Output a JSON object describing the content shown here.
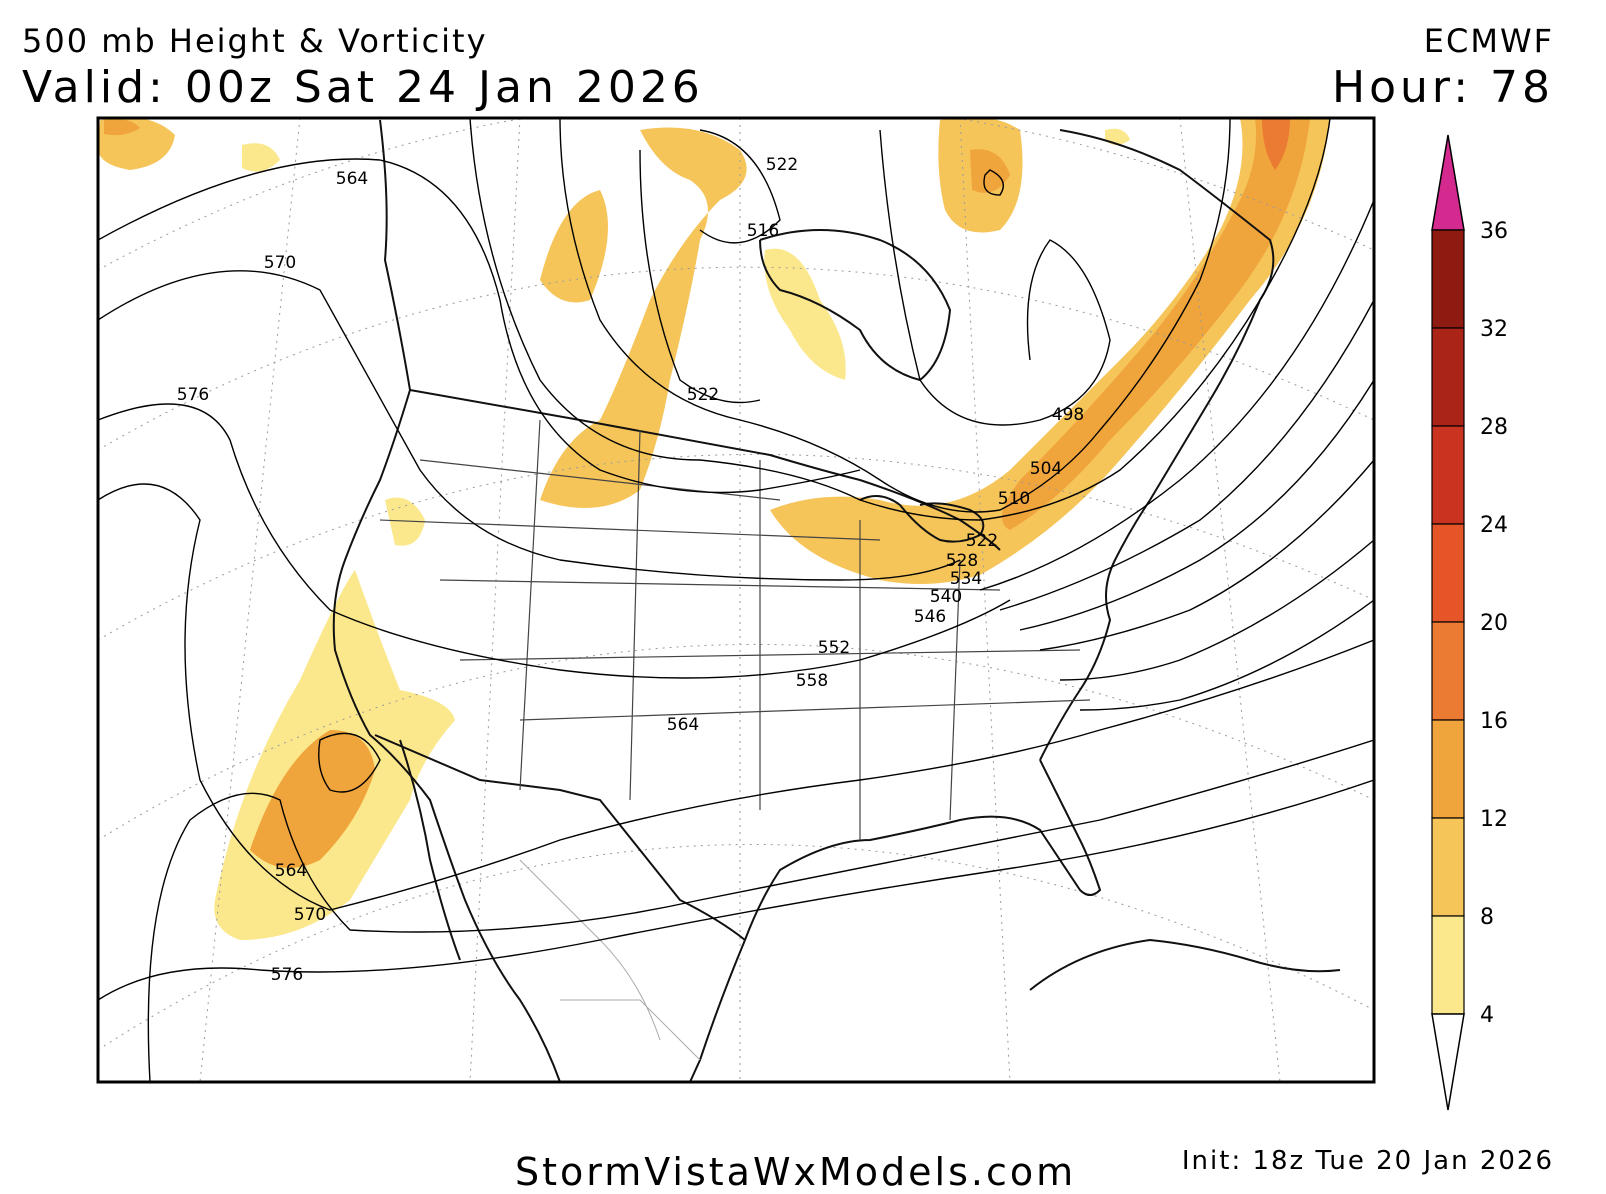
{
  "header": {
    "product": "500 mb Height & Vorticity",
    "valid": "Valid: 00z Sat 24 Jan 2026",
    "model": "ECMWF",
    "hour": "Hour: 78"
  },
  "footer": {
    "website": "StormVistaWxModels.com",
    "init": "Init: 18z Tue 20 Jan 2026"
  },
  "height_contour_labels": [
    "564",
    "570",
    "576",
    "522",
    "516",
    "522",
    "498",
    "504",
    "510",
    "522",
    "528",
    "534",
    "540",
    "546",
    "552",
    "558",
    "564",
    "564",
    "570",
    "576"
  ],
  "colorbar": {
    "ticks": [
      "36",
      "32",
      "28",
      "24",
      "20",
      "16",
      "12",
      "8",
      "4"
    ],
    "colors": [
      "#fbe88c",
      "#f6c55a",
      "#f0a43c",
      "#eb7a32",
      "#e65527",
      "#c93420",
      "#ab2418",
      "#8e1b12",
      "#d42a8f"
    ]
  }
}
